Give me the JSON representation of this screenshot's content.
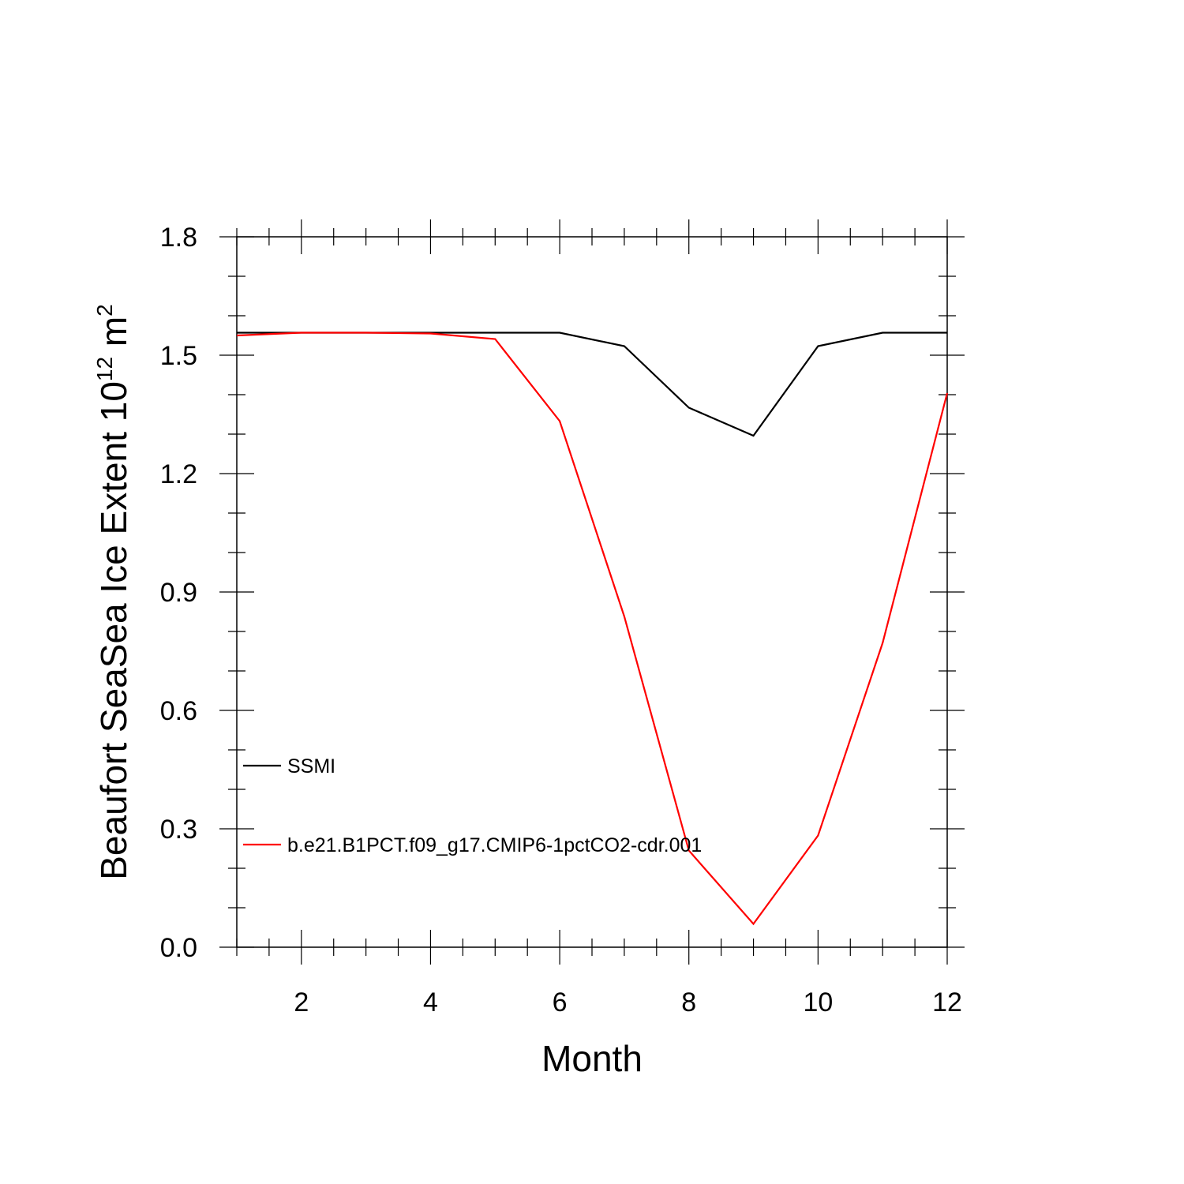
{
  "chart_data": {
    "type": "line",
    "title": "",
    "xlabel": "Month",
    "ylabel": {
      "main": "Beaufort SeaSea Ice Extent 10",
      "exponent": "12",
      "unit": " m",
      "unit_exponent": "2"
    },
    "xlim": [
      1,
      12
    ],
    "ylim": [
      0.0,
      1.8
    ],
    "xticks": [
      2,
      4,
      6,
      8,
      10,
      12
    ],
    "xtick_labels": [
      "2",
      "4",
      "6",
      "8",
      "10",
      "12"
    ],
    "yticks": [
      0.0,
      0.3,
      0.6,
      0.9,
      1.2,
      1.5,
      1.8
    ],
    "ytick_labels": [
      "0.0",
      "0.3",
      "0.6",
      "0.9",
      "1.2",
      "1.5",
      "1.8"
    ],
    "x": [
      1,
      2,
      3,
      4,
      5,
      6,
      7,
      8,
      9,
      10,
      11,
      12
    ],
    "series": [
      {
        "name": "SSMI",
        "color": "#000000",
        "values": [
          1.557,
          1.557,
          1.557,
          1.557,
          1.557,
          1.557,
          1.523,
          1.367,
          1.296,
          1.523,
          1.557,
          1.557
        ]
      },
      {
        "name": "b.e21.B1PCT.f09_g17.CMIP6-1pctCO2-cdr.001",
        "color": "#ff0000",
        "values": [
          1.55,
          1.557,
          1.557,
          1.555,
          1.541,
          1.333,
          0.838,
          0.245,
          0.059,
          0.283,
          0.771,
          1.404
        ]
      }
    ],
    "grid": false,
    "legend_position": "lower-left"
  }
}
